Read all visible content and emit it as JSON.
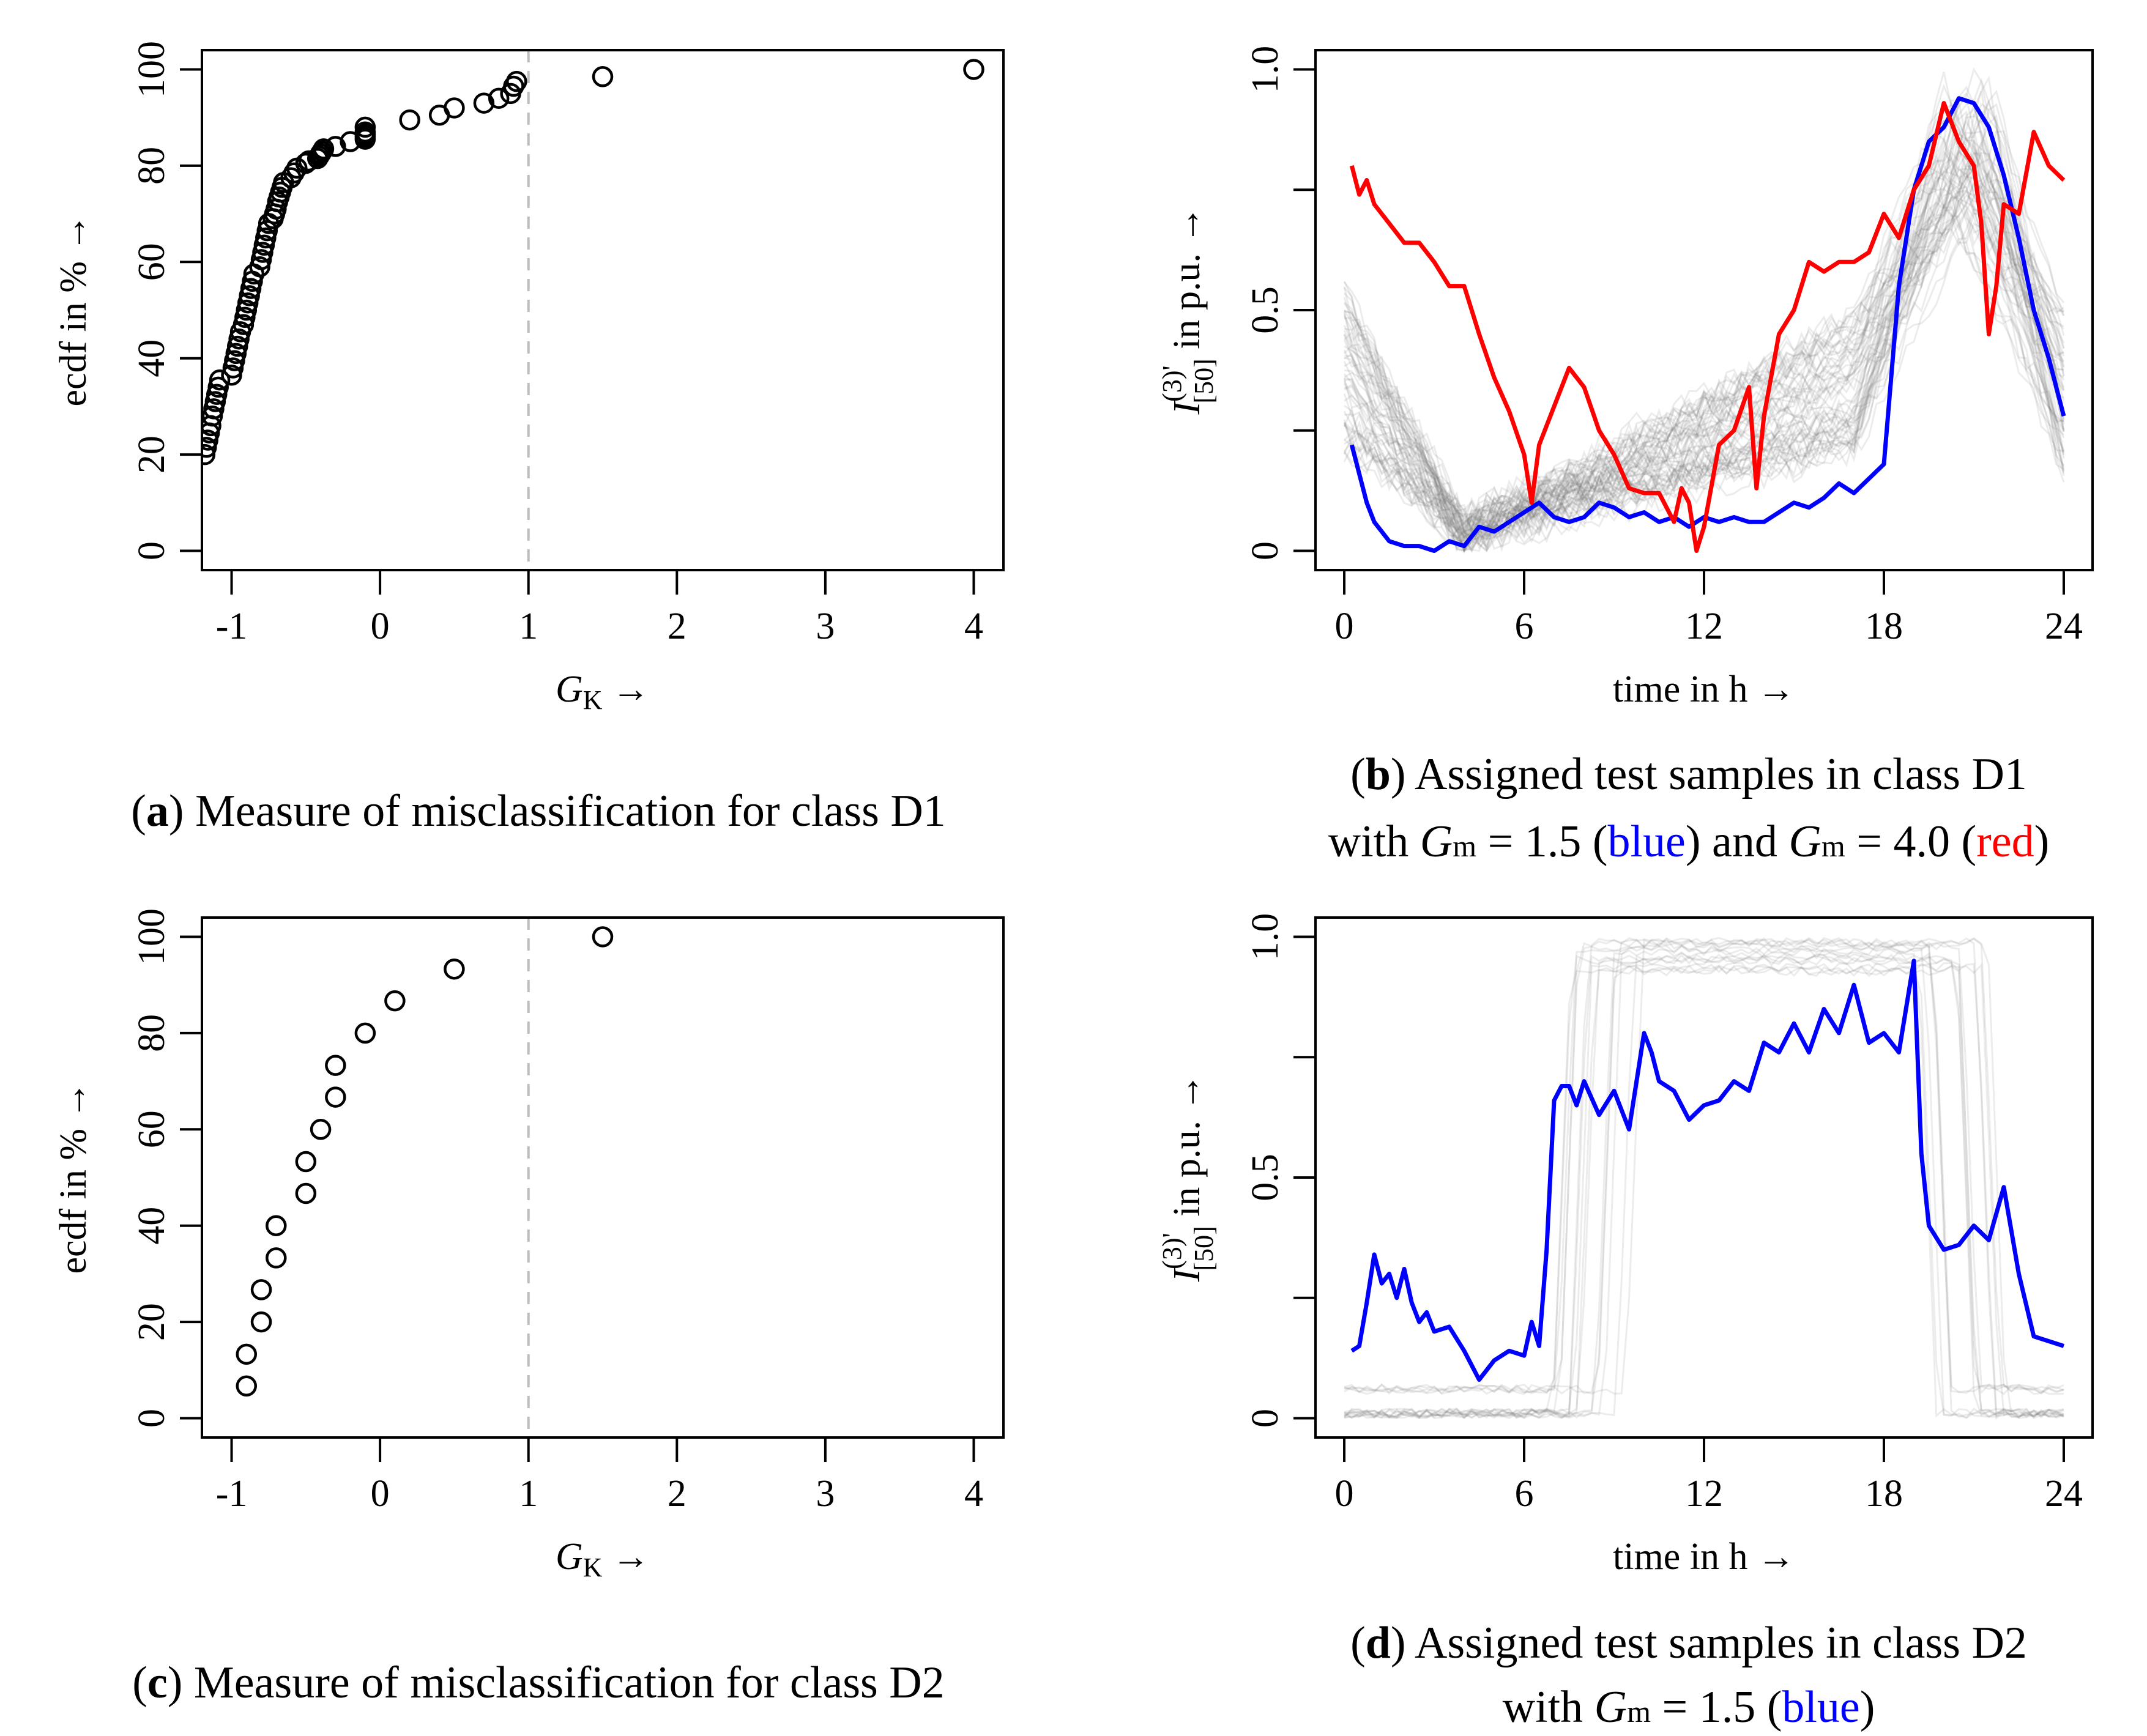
{
  "chart_data": [
    {
      "id": "a",
      "type": "scatter",
      "caption": {
        "letter": "a",
        "text": "Measure of misclassification for class D1"
      },
      "xlabel": "G",
      "xlabel_sub": "K",
      "ylabel": "ecdf in %",
      "xlim": [
        -1.2,
        4.2
      ],
      "ylim": [
        0,
        100
      ],
      "xticks": [
        -1,
        0,
        1,
        2,
        3,
        4
      ],
      "yticks": [
        0,
        20,
        40,
        60,
        80,
        100
      ],
      "reference_line_x": 1,
      "x": [
        -1.18,
        -1.17,
        -1.16,
        -1.15,
        -1.14,
        -1.13,
        -1.12,
        -1.11,
        -1.1,
        -1.09,
        -1.08,
        -1.0,
        -0.99,
        -0.98,
        -0.97,
        -0.96,
        -0.95,
        -0.94,
        -0.92,
        -0.91,
        -0.9,
        -0.89,
        -0.88,
        -0.87,
        -0.86,
        -0.85,
        -0.81,
        -0.8,
        -0.79,
        -0.78,
        -0.77,
        -0.76,
        -0.75,
        -0.72,
        -0.71,
        -0.7,
        -0.69,
        -0.68,
        -0.67,
        -0.66,
        -0.65,
        -0.6,
        -0.58,
        -0.56,
        -0.5,
        -0.48,
        -0.42,
        -0.41,
        -0.4,
        -0.39,
        -0.38,
        -0.3,
        -0.2,
        -0.1,
        -0.1,
        -0.1,
        -0.1,
        -0.1,
        0.2,
        0.4,
        0.5,
        0.7,
        0.8,
        0.88,
        0.9,
        0.92,
        1.5,
        4.0
      ],
      "y": [
        20,
        21.5,
        23,
        24.5,
        26,
        28,
        29.5,
        31,
        32.5,
        34,
        35.5,
        36.5,
        38,
        39.5,
        41,
        42.5,
        44,
        45.5,
        47,
        48.5,
        50,
        51.5,
        53,
        54.5,
        56,
        57.5,
        59,
        60.5,
        62,
        63.5,
        65,
        66.5,
        68,
        69,
        70,
        71,
        72.5,
        73.5,
        74.5,
        75.5,
        76.5,
        77.5,
        78.5,
        79.5,
        80.5,
        81,
        81.5,
        82,
        82.5,
        83,
        83.5,
        84,
        85,
        86,
        87,
        88,
        85.5,
        86.5,
        89.5,
        90.5,
        92,
        93,
        94,
        95,
        96.5,
        97.5,
        98.5,
        100
      ]
    },
    {
      "id": "b",
      "type": "line",
      "caption": {
        "letter": "b",
        "line1": "Assigned test samples in class D1",
        "line2_prefix": "with ",
        "g_symbol": "G",
        "g_sub": "m",
        "blue_value": " = 1.5 (",
        "blue_word": "blue",
        "connector": ") and ",
        "red_value": " = 4.0 (",
        "red_word": "red",
        "close": ")"
      },
      "xlabel": "time in h",
      "ylabel_symbol": "I",
      "ylabel_sup": "(3)'",
      "ylabel_sub": "[50]",
      "ylabel_unit": " in p.u.",
      "xlim": [
        0,
        24
      ],
      "ylim": [
        0,
        1
      ],
      "xticks": [
        0,
        6,
        12,
        18,
        24
      ],
      "yticks": [
        0,
        0.25,
        0.5,
        0.75,
        1.0
      ],
      "ytick_labels": [
        "0",
        "",
        "0.5",
        "",
        "1.0"
      ],
      "background_count": 60,
      "series": [
        {
          "color": "#0000ff",
          "x": [
            0.25,
            0.5,
            0.75,
            1,
            1.5,
            2,
            2.5,
            3,
            3.5,
            4,
            4.5,
            5,
            5.5,
            6,
            6.5,
            7,
            7.5,
            8,
            8.5,
            9,
            9.5,
            10,
            10.5,
            11,
            11.5,
            12,
            12.5,
            13,
            13.5,
            14,
            14.5,
            15,
            15.5,
            16,
            16.5,
            17,
            17.5,
            18,
            18.5,
            19,
            19.5,
            20,
            20.5,
            21,
            21.5,
            22,
            22.5,
            23,
            23.5,
            24
          ],
          "y": [
            0.22,
            0.16,
            0.1,
            0.06,
            0.02,
            0.01,
            0.01,
            0.0,
            0.02,
            0.01,
            0.05,
            0.04,
            0.06,
            0.08,
            0.1,
            0.07,
            0.06,
            0.07,
            0.1,
            0.09,
            0.07,
            0.08,
            0.06,
            0.07,
            0.05,
            0.07,
            0.06,
            0.07,
            0.06,
            0.06,
            0.08,
            0.1,
            0.09,
            0.11,
            0.14,
            0.12,
            0.15,
            0.18,
            0.55,
            0.75,
            0.85,
            0.88,
            0.94,
            0.93,
            0.88,
            0.78,
            0.65,
            0.5,
            0.4,
            0.28
          ]
        },
        {
          "color": "#ff0000",
          "x": [
            0.25,
            0.5,
            0.75,
            1,
            1.5,
            2,
            2.5,
            3,
            3.5,
            4,
            4.5,
            5,
            5.5,
            6,
            6.25,
            6.5,
            7,
            7.5,
            8,
            8.5,
            9,
            9.5,
            10,
            10.5,
            11,
            11.25,
            11.5,
            11.75,
            12,
            12.5,
            13,
            13.5,
            13.75,
            14,
            14.5,
            15,
            15.5,
            16,
            16.5,
            17,
            17.5,
            18,
            18.5,
            19,
            19.5,
            20,
            20.5,
            21,
            21.25,
            21.5,
            21.75,
            22,
            22.5,
            23,
            23.5,
            24
          ],
          "y": [
            0.8,
            0.74,
            0.77,
            0.72,
            0.68,
            0.64,
            0.64,
            0.6,
            0.55,
            0.55,
            0.45,
            0.36,
            0.29,
            0.2,
            0.1,
            0.22,
            0.3,
            0.38,
            0.34,
            0.25,
            0.2,
            0.13,
            0.12,
            0.12,
            0.06,
            0.13,
            0.1,
            0.0,
            0.05,
            0.22,
            0.25,
            0.34,
            0.13,
            0.28,
            0.45,
            0.5,
            0.6,
            0.58,
            0.6,
            0.6,
            0.62,
            0.7,
            0.65,
            0.75,
            0.8,
            0.93,
            0.85,
            0.8,
            0.68,
            0.45,
            0.55,
            0.72,
            0.7,
            0.87,
            0.8,
            0.77
          ]
        }
      ]
    },
    {
      "id": "c",
      "type": "scatter",
      "caption": {
        "letter": "c",
        "text": "Measure of misclassification for class D2"
      },
      "xlabel": "G",
      "xlabel_sub": "K",
      "ylabel": "ecdf in %",
      "xlim": [
        -1.2,
        4.2
      ],
      "ylim": [
        0,
        100
      ],
      "xticks": [
        -1,
        0,
        1,
        2,
        3,
        4
      ],
      "yticks": [
        0,
        20,
        40,
        60,
        80,
        100
      ],
      "reference_line_x": 1,
      "x": [
        -0.9,
        -0.9,
        -0.8,
        -0.8,
        -0.7,
        -0.7,
        -0.5,
        -0.5,
        -0.4,
        -0.3,
        -0.3,
        -0.1,
        0.1,
        0.5,
        1.5
      ],
      "y": [
        6.7,
        13.3,
        20,
        26.7,
        33.3,
        40,
        46.7,
        53.3,
        60,
        66.7,
        73.3,
        80,
        86.7,
        93.3,
        100
      ]
    },
    {
      "id": "d",
      "type": "line",
      "caption": {
        "letter": "d",
        "line1": "Assigned test samples in class D2",
        "line2_prefix": "with ",
        "g_symbol": "G",
        "g_sub": "m",
        "blue_value": " = 1.5 (",
        "blue_word": "blue",
        "close": ")"
      },
      "xlabel": "time in h",
      "ylabel_symbol": "I",
      "ylabel_sup": "(3)'",
      "ylabel_sub": "[50]",
      "ylabel_unit": " in p.u.",
      "xlim": [
        0,
        24
      ],
      "ylim": [
        0,
        1
      ],
      "xticks": [
        0,
        6,
        12,
        18,
        24
      ],
      "yticks": [
        0,
        0.25,
        0.5,
        0.75,
        1.0
      ],
      "ytick_labels": [
        "0",
        "",
        "0.5",
        "",
        "1.0"
      ],
      "background_count": 16,
      "series": [
        {
          "color": "#0000ff",
          "x": [
            0.25,
            0.5,
            0.75,
            1,
            1.25,
            1.5,
            1.75,
            2,
            2.25,
            2.5,
            2.75,
            3,
            3.5,
            4,
            4.5,
            5,
            5.5,
            6,
            6.25,
            6.5,
            6.75,
            7,
            7.25,
            7.5,
            7.75,
            8,
            8.5,
            9,
            9.5,
            10,
            10.25,
            10.5,
            11,
            11.5,
            12,
            12.5,
            13,
            13.5,
            14,
            14.5,
            15,
            15.5,
            16,
            16.5,
            17,
            17.5,
            18,
            18.5,
            19,
            19.25,
            19.5,
            20,
            20.5,
            21,
            21.5,
            22,
            22.5,
            23,
            23.5,
            24
          ],
          "y": [
            0.14,
            0.15,
            0.24,
            0.34,
            0.28,
            0.3,
            0.25,
            0.31,
            0.24,
            0.2,
            0.22,
            0.18,
            0.19,
            0.14,
            0.08,
            0.12,
            0.14,
            0.13,
            0.2,
            0.15,
            0.35,
            0.66,
            0.69,
            0.69,
            0.65,
            0.7,
            0.63,
            0.68,
            0.6,
            0.8,
            0.76,
            0.7,
            0.68,
            0.62,
            0.65,
            0.66,
            0.7,
            0.68,
            0.78,
            0.76,
            0.82,
            0.76,
            0.85,
            0.8,
            0.9,
            0.78,
            0.8,
            0.76,
            0.95,
            0.55,
            0.4,
            0.35,
            0.36,
            0.4,
            0.37,
            0.48,
            0.3,
            0.17,
            0.16,
            0.15
          ]
        }
      ]
    }
  ]
}
